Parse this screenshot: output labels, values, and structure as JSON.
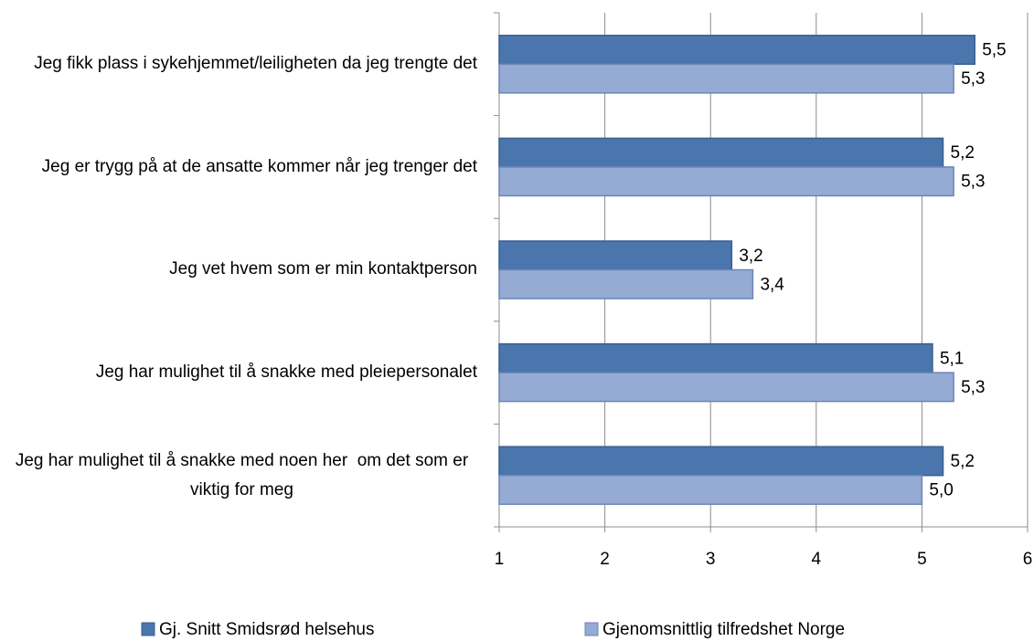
{
  "chart_data": {
    "type": "bar",
    "orientation": "horizontal",
    "categories": [
      "Jeg fikk plass i sykehjemmet/leiligheten da jeg trengte det",
      "Jeg er trygg på at de ansatte kommer når jeg trenger det",
      "Jeg vet hvem som er min kontaktperson",
      "Jeg har mulighet til å snakke med pleiepersonalet",
      "Jeg har mulighet til å snakke med noen her  om det som er viktig for meg"
    ],
    "series": [
      {
        "name": "Gj. Snitt Smidsrød helsehus",
        "color": "#4a76ad",
        "values": [
          5.5,
          5.2,
          3.2,
          5.1,
          5.2
        ],
        "value_labels": [
          "5,5",
          "5,2",
          "3,2",
          "5,1",
          "5,2"
        ]
      },
      {
        "name": "Gjenomsnittlig tilfredshet Norge",
        "color": "#95abd4",
        "values": [
          5.3,
          5.3,
          3.4,
          5.3,
          5.0
        ],
        "value_labels": [
          "5,3",
          "5,3",
          "3,4",
          "5,3",
          "5,0"
        ]
      }
    ],
    "xlim": [
      1,
      6
    ],
    "xticks": [
      1,
      2,
      3,
      4,
      5,
      6
    ],
    "grid": true,
    "legend": "bottom"
  }
}
